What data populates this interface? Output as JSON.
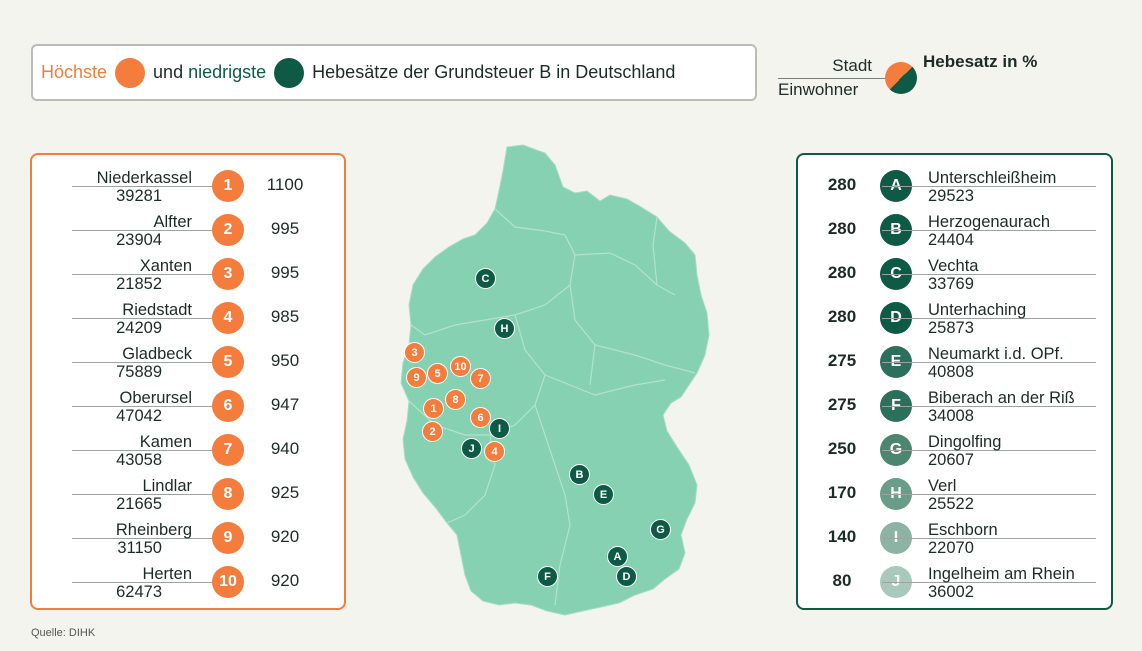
{
  "title": {
    "highest_label": "Höchste",
    "and_lowest_label": "und",
    "lowest_label": "niedrigste",
    "rest_label": "Hebesätze der Grundsteuer B in Deutschland"
  },
  "legend": {
    "city_label": "Stadt",
    "population_label": "Einwohner",
    "rate_label": "Hebesatz in %"
  },
  "colors": {
    "highest": "#f47c3c",
    "lowest": "#0f5a45",
    "map": "#86d1b2"
  },
  "highest": [
    {
      "rank": "1",
      "city": "Niederkassel",
      "population": "39281",
      "rate": "1100"
    },
    {
      "rank": "2",
      "city": "Alfter",
      "population": "23904",
      "rate": "995"
    },
    {
      "rank": "3",
      "city": "Xanten",
      "population": "21852",
      "rate": "995"
    },
    {
      "rank": "4",
      "city": "Riedstadt",
      "population": "24209",
      "rate": "985"
    },
    {
      "rank": "5",
      "city": "Gladbeck",
      "population": "75889",
      "rate": "950"
    },
    {
      "rank": "6",
      "city": "Oberursel",
      "population": "47042",
      "rate": "947"
    },
    {
      "rank": "7",
      "city": "Kamen",
      "population": "43058",
      "rate": "940"
    },
    {
      "rank": "8",
      "city": "Lindlar",
      "population": "21665",
      "rate": "925"
    },
    {
      "rank": "9",
      "city": "Rheinberg",
      "population": "31150",
      "rate": "920"
    },
    {
      "rank": "10",
      "city": "Herten",
      "population": "62473",
      "rate": "920"
    }
  ],
  "lowest": [
    {
      "letter": "A",
      "city": "Unterschleißheim",
      "population": "29523",
      "rate": "280",
      "color": "#0f5a45"
    },
    {
      "letter": "B",
      "city": "Herzogenaurach",
      "population": "24404",
      "rate": "280",
      "color": "#0f5a45"
    },
    {
      "letter": "C",
      "city": "Vechta",
      "population": "33769",
      "rate": "280",
      "color": "#0f5a45"
    },
    {
      "letter": "D",
      "city": "Unterhaching",
      "population": "25873",
      "rate": "280",
      "color": "#0f5a45"
    },
    {
      "letter": "E",
      "city": "Neumarkt i.d. OPf.",
      "population": "40808",
      "rate": "275",
      "color": "#2c6f5a"
    },
    {
      "letter": "F",
      "city": "Biberach an der Riß",
      "population": "34008",
      "rate": "275",
      "color": "#2c6f5a"
    },
    {
      "letter": "G",
      "city": "Dingolfing",
      "population": "20607",
      "rate": "250",
      "color": "#4a8670"
    },
    {
      "letter": "H",
      "city": "Verl",
      "population": "25522",
      "rate": "170",
      "color": "#6a9d89"
    },
    {
      "letter": "I",
      "city": "Eschborn",
      "population": "22070",
      "rate": "140",
      "color": "#8cb4a4"
    },
    {
      "letter": "J",
      "city": "Ingelheim am Rhein",
      "population": "36002",
      "rate": "80",
      "color": "#a9c9bc"
    }
  ],
  "map_markers_highest": [
    "1",
    "2",
    "3",
    "4",
    "5",
    "6",
    "7",
    "8",
    "9",
    "10"
  ],
  "map_markers_lowest": [
    "A",
    "B",
    "C",
    "D",
    "E",
    "F",
    "G",
    "H",
    "I",
    "J"
  ],
  "source": "Quelle: DIHK"
}
